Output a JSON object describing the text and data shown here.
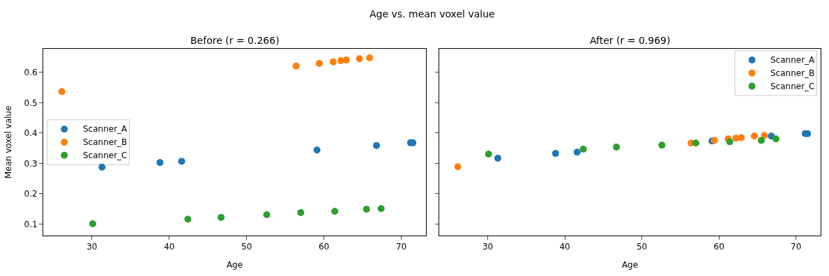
{
  "chart_data": [
    {
      "type": "scatter",
      "annotations": [
        "Age vs. mean voxel value"
      ],
      "title": "Before (r = 0.266)",
      "xlabel": "Age",
      "ylabel": "Mean voxel value",
      "marker": "circle",
      "grid": false,
      "legend": "left",
      "xlim": [
        23.7,
        73.2
      ],
      "xticks": [
        30,
        40,
        50,
        60,
        70
      ],
      "ylim": [
        0.062,
        0.678
      ],
      "yticks": [
        0.1,
        0.2,
        0.3,
        0.4,
        0.5,
        0.6
      ],
      "series": [
        {
          "name": "Scanner_A",
          "color": "#1f77b4",
          "x": [
            31.3,
            38.8,
            41.6,
            59.1,
            66.8,
            71.2,
            71.5
          ],
          "values": [
            0.288,
            0.303,
            0.307,
            0.344,
            0.359,
            0.368,
            0.368
          ]
        },
        {
          "name": "Scanner_B",
          "color": "#ff7f0e",
          "x": [
            26.1,
            56.4,
            59.4,
            61.2,
            62.2,
            62.9,
            64.6,
            65.9
          ],
          "values": [
            0.537,
            0.621,
            0.63,
            0.635,
            0.639,
            0.641,
            0.645,
            0.648
          ]
        },
        {
          "name": "Scanner_C",
          "color": "#2ca02c",
          "x": [
            30.1,
            42.4,
            46.7,
            52.6,
            57.0,
            61.4,
            65.5,
            67.4
          ],
          "values": [
            0.101,
            0.116,
            0.122,
            0.131,
            0.138,
            0.142,
            0.149,
            0.151
          ]
        }
      ]
    },
    {
      "type": "scatter",
      "title": "After (r = 0.969)",
      "xlabel": "Age",
      "marker": "circle",
      "grid": false,
      "legend": "top right",
      "tick_labels": "x",
      "xlim": [
        23.7,
        73.2
      ],
      "xticks": [
        30,
        40,
        50,
        60,
        70
      ],
      "ylim": [
        0.062,
        0.678
      ],
      "yticks": [
        0.1,
        0.2,
        0.3,
        0.4,
        0.5,
        0.6
      ],
      "series": [
        {
          "name": "Scanner_A",
          "color": "#1f77b4",
          "x": [
            31.3,
            38.8,
            41.6,
            59.1,
            66.8,
            71.2,
            71.5
          ],
          "values": [
            0.317,
            0.333,
            0.337,
            0.374,
            0.39,
            0.398,
            0.398
          ]
        },
        {
          "name": "Scanner_B",
          "color": "#ff7f0e",
          "x": [
            26.1,
            56.4,
            59.4,
            61.2,
            62.2,
            62.9,
            64.6,
            65.9
          ],
          "values": [
            0.289,
            0.367,
            0.376,
            0.381,
            0.383,
            0.385,
            0.39,
            0.392
          ]
        },
        {
          "name": "Scanner_C",
          "color": "#2ca02c",
          "x": [
            30.1,
            42.4,
            46.7,
            52.6,
            57.0,
            61.4,
            65.5,
            67.4
          ],
          "values": [
            0.331,
            0.347,
            0.354,
            0.36,
            0.367,
            0.371,
            0.376,
            0.381
          ]
        }
      ]
    }
  ]
}
